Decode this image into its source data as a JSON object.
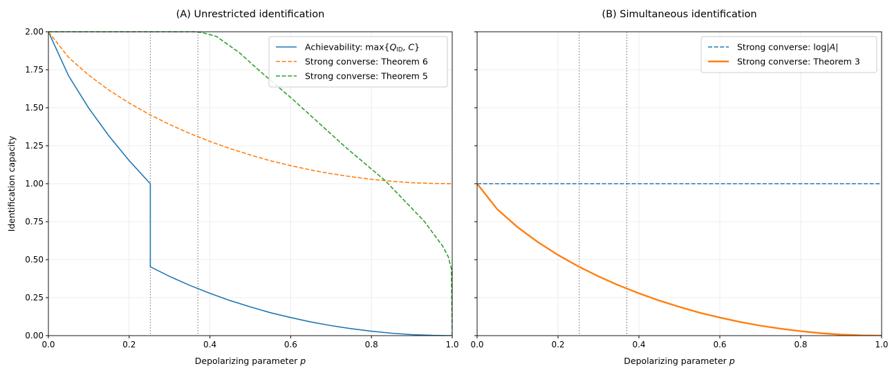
{
  "chart_data": [
    {
      "type": "line",
      "title": "(A) Unrestricted identification",
      "xlabel": "Depolarizing parameter p",
      "ylabel": "Identification capacity",
      "xlim": [
        0,
        1
      ],
      "ylim": [
        0,
        2
      ],
      "xticks": [
        "0.0",
        "0.2",
        "0.4",
        "0.6",
        "0.8",
        "1.0"
      ],
      "yticks": [
        "0.00",
        "0.25",
        "0.50",
        "0.75",
        "1.00",
        "1.25",
        "1.50",
        "1.75",
        "2.00"
      ],
      "grid": true,
      "legend_position": "top-right",
      "vlines": [
        0.2524,
        0.3701
      ],
      "series": [
        {
          "name": "Achievability: max{Q_ID, C}",
          "legend_main": "Achievability: max{",
          "legend_q": "Q",
          "legend_sub": "ID",
          "legend_rest": ", ",
          "legend_c": "C",
          "legend_end": "}",
          "color": "#1f77b4",
          "style": "solid",
          "x": [
            0,
            0.05,
            0.1,
            0.15,
            0.2,
            0.25,
            0.2524,
            0.2524,
            0.3,
            0.35,
            0.4,
            0.45,
            0.5,
            0.55,
            0.6,
            0.65,
            0.7,
            0.75,
            0.8,
            0.85,
            0.9,
            0.95,
            1.0
          ],
          "y": [
            2,
            1.71,
            1.497,
            1.314,
            1.152,
            1.007,
            1.0,
            0.453,
            0.39,
            0.331,
            0.278,
            0.231,
            0.189,
            0.151,
            0.119,
            0.09,
            0.066,
            0.046,
            0.029,
            0.016,
            0.007,
            0.002,
            0
          ]
        },
        {
          "name": "Strong converse: Theorem 6",
          "color": "#ff7f0e",
          "style": "dashed",
          "x": [
            0,
            0.05,
            0.1,
            0.15,
            0.2,
            0.25,
            0.3,
            0.35,
            0.4,
            0.45,
            0.5,
            0.55,
            0.6,
            0.65,
            0.7,
            0.75,
            0.8,
            0.85,
            0.9,
            0.95,
            1.0
          ],
          "y": [
            2,
            1.831,
            1.714,
            1.616,
            1.531,
            1.456,
            1.39,
            1.331,
            1.278,
            1.231,
            1.189,
            1.151,
            1.119,
            1.09,
            1.066,
            1.046,
            1.029,
            1.016,
            1.007,
            1.002,
            1.0
          ]
        },
        {
          "name": "Strong converse: Theorem 5",
          "color": "#2ca02c",
          "style": "dashed",
          "x": [
            0,
            0.36,
            0.38,
            0.416,
            0.474,
            0.522,
            0.603,
            0.736,
            0.834,
            0.93,
            0.976,
            0.99,
            0.998,
            1.0
          ],
          "y": [
            2,
            2,
            1.995,
            1.97,
            1.86,
            1.745,
            1.56,
            1.24,
            1.02,
            0.755,
            0.59,
            0.52,
            0.44,
            0
          ]
        }
      ]
    },
    {
      "type": "line",
      "title": "(B) Simultaneous identification",
      "xlabel": "Depolarizing parameter p",
      "xlim": [
        0,
        1
      ],
      "ylim": [
        0,
        2
      ],
      "xticks": [
        "0.0",
        "0.2",
        "0.4",
        "0.6",
        "0.8",
        "1.0"
      ],
      "grid": true,
      "legend_position": "top-right",
      "vlines": [
        0.2524,
        0.3701
      ],
      "series": [
        {
          "name": "Strong converse: log|A|",
          "legend_main": "Strong converse: log|",
          "legend_a": "A",
          "legend_end": "|",
          "color": "#1f77b4",
          "style": "dashed",
          "x": [
            0,
            1
          ],
          "y": [
            1,
            1
          ]
        },
        {
          "name": "Strong converse: Theorem 3",
          "color": "#ff7f0e",
          "style": "solid-thick",
          "x": [
            0,
            0.05,
            0.1,
            0.15,
            0.2,
            0.25,
            0.3,
            0.35,
            0.4,
            0.45,
            0.5,
            0.55,
            0.6,
            0.65,
            0.7,
            0.75,
            0.8,
            0.85,
            0.9,
            0.95,
            1.0
          ],
          "y": [
            1,
            0.831,
            0.714,
            0.616,
            0.531,
            0.456,
            0.39,
            0.331,
            0.278,
            0.231,
            0.189,
            0.151,
            0.119,
            0.09,
            0.066,
            0.046,
            0.029,
            0.016,
            0.007,
            0.002,
            0
          ]
        }
      ]
    }
  ]
}
